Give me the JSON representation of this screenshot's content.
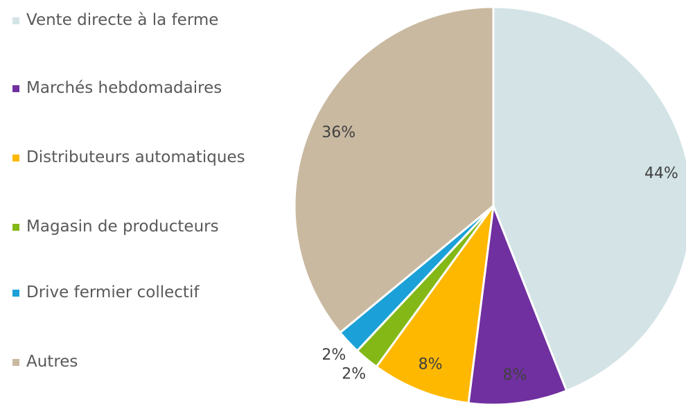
{
  "chart_data": {
    "type": "pie",
    "categories": [
      "Vente directe à la ferme",
      "Marchés hebdomadaires",
      "Distributeurs automatiques",
      "Magasin de producteurs",
      "Drive fermier collectif",
      "Autres"
    ],
    "values": [
      44,
      8,
      8,
      2,
      2,
      36
    ],
    "value_labels": [
      "44%",
      "8%",
      "8%",
      "2%",
      "2%",
      "36%"
    ],
    "colors": [
      "#d3e3e6",
      "#7030a0",
      "#ffb800",
      "#84b817",
      "#1ba1d8",
      "#c9b9a0"
    ],
    "legend": "left"
  }
}
